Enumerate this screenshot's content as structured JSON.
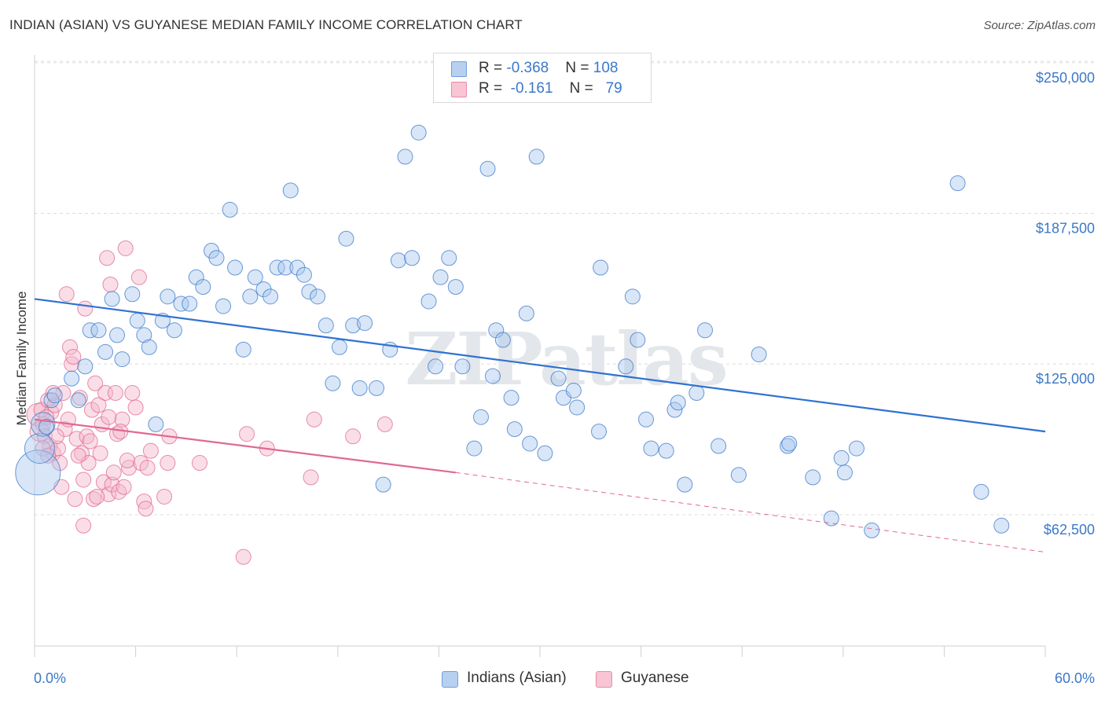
{
  "header": {
    "title": "INDIAN (ASIAN) VS GUYANESE MEDIAN FAMILY INCOME CORRELATION CHART",
    "source": "Source: ZipAtlas.com"
  },
  "watermark": "ZIPatlas",
  "colors": {
    "blue": "#3b78c9",
    "blue_fill": "#a9c7ee",
    "blue_line": "#2e72d2",
    "pink": "#e0688f",
    "pink_fill": "#f4b6c9",
    "pink_line": "#e06990",
    "grid": "#dddddd",
    "axis_text": "#3b78c9"
  },
  "legend": {
    "rows": [
      {
        "r_label": "R = ",
        "r_value": "-0.368",
        "n_label": "N = ",
        "n_value": "108"
      },
      {
        "r_label": "R = ",
        "r_value": "-0.161",
        "n_label": "N = ",
        "n_value": "79"
      }
    ]
  },
  "bottom_legend": {
    "items": [
      {
        "label": "Indians (Asian)"
      },
      {
        "label": "Guyanese"
      }
    ]
  },
  "chart_data": {
    "type": "scatter",
    "title": "INDIAN (ASIAN) VS GUYANESE MEDIAN FAMILY INCOME CORRELATION CHART",
    "xlabel": "",
    "ylabel": "Median Family Income",
    "xlim": [
      0,
      60
    ],
    "ylim": [
      12000,
      260000
    ],
    "x_tick_labels": [
      "0.0%",
      "60.0%"
    ],
    "y_ticks": [
      62500,
      125000,
      187500,
      250000
    ],
    "y_tick_labels": [
      "$62,500",
      "$125,000",
      "$187,500",
      "$250,000"
    ],
    "grid": true,
    "legend_position": "top-center",
    "series": [
      {
        "name": "Indians (Asian)",
        "color": "blue",
        "trend": {
          "x": [
            0,
            60
          ],
          "y": [
            152000,
            97000
          ]
        },
        "points": [
          [
            0.2,
            80000,
            3
          ],
          [
            0.3,
            90000,
            2
          ],
          [
            0.5,
            100000,
            1.6
          ],
          [
            0.7,
            99000,
            1
          ],
          [
            1.0,
            110000,
            1
          ],
          [
            1.2,
            112000,
            1
          ],
          [
            2.2,
            119000,
            1
          ],
          [
            2.6,
            110000,
            1
          ],
          [
            3.0,
            124000,
            1
          ],
          [
            3.3,
            139000,
            1
          ],
          [
            3.8,
            139000,
            1
          ],
          [
            4.2,
            130000,
            1
          ],
          [
            4.6,
            152000,
            1
          ],
          [
            4.9,
            137000,
            1
          ],
          [
            5.2,
            127000,
            1
          ],
          [
            5.8,
            154000,
            1
          ],
          [
            6.1,
            143000,
            1
          ],
          [
            6.5,
            137000,
            1
          ],
          [
            6.8,
            132000,
            1
          ],
          [
            7.2,
            100000,
            1
          ],
          [
            7.6,
            143000,
            1
          ],
          [
            7.9,
            153000,
            1
          ],
          [
            8.3,
            139000,
            1
          ],
          [
            8.7,
            150000,
            1
          ],
          [
            9.2,
            150000,
            1
          ],
          [
            9.6,
            161000,
            1
          ],
          [
            10.0,
            157000,
            1
          ],
          [
            10.5,
            172000,
            1
          ],
          [
            10.8,
            169000,
            1
          ],
          [
            11.2,
            149000,
            1
          ],
          [
            11.6,
            189000,
            1
          ],
          [
            11.9,
            165000,
            1
          ],
          [
            12.4,
            131000,
            1
          ],
          [
            12.8,
            153000,
            1
          ],
          [
            13.1,
            161000,
            1
          ],
          [
            13.6,
            156000,
            1
          ],
          [
            14.0,
            153000,
            1
          ],
          [
            14.4,
            165000,
            1
          ],
          [
            14.9,
            165000,
            1
          ],
          [
            15.2,
            197000,
            1
          ],
          [
            15.6,
            165000,
            1
          ],
          [
            16.0,
            162000,
            1
          ],
          [
            16.3,
            155000,
            1
          ],
          [
            16.8,
            153000,
            1
          ],
          [
            17.3,
            141000,
            1
          ],
          [
            17.7,
            117000,
            1
          ],
          [
            18.1,
            132000,
            1
          ],
          [
            18.5,
            177000,
            1
          ],
          [
            18.9,
            141000,
            1
          ],
          [
            19.3,
            115000,
            1
          ],
          [
            19.6,
            142000,
            1
          ],
          [
            20.3,
            115000,
            1
          ],
          [
            20.7,
            75000,
            1
          ],
          [
            21.1,
            131000,
            1
          ],
          [
            21.6,
            168000,
            1
          ],
          [
            22.0,
            211000,
            1
          ],
          [
            22.4,
            169000,
            1
          ],
          [
            22.8,
            221000,
            1
          ],
          [
            23.4,
            151000,
            1
          ],
          [
            23.8,
            124000,
            1
          ],
          [
            24.1,
            161000,
            1
          ],
          [
            24.6,
            169000,
            1
          ],
          [
            25.0,
            157000,
            1
          ],
          [
            25.4,
            124000,
            1
          ],
          [
            26.1,
            90000,
            1
          ],
          [
            26.5,
            103000,
            1
          ],
          [
            26.9,
            206000,
            1
          ],
          [
            27.2,
            120000,
            1
          ],
          [
            27.4,
            139000,
            1
          ],
          [
            27.8,
            135000,
            1
          ],
          [
            28.3,
            111000,
            1
          ],
          [
            28.5,
            98000,
            1
          ],
          [
            29.2,
            146000,
            1
          ],
          [
            29.4,
            92000,
            1
          ],
          [
            29.8,
            211000,
            1
          ],
          [
            30.3,
            88000,
            1
          ],
          [
            31.1,
            119000,
            1
          ],
          [
            31.4,
            111000,
            1
          ],
          [
            32.0,
            114000,
            1
          ],
          [
            32.2,
            107000,
            1
          ],
          [
            33.5,
            97000,
            1
          ],
          [
            33.6,
            165000,
            1
          ],
          [
            35.1,
            124000,
            1
          ],
          [
            35.5,
            153000,
            1
          ],
          [
            35.8,
            135000,
            1
          ],
          [
            36.3,
            102000,
            1
          ],
          [
            36.6,
            90000,
            1
          ],
          [
            37.5,
            89000,
            1
          ],
          [
            38.0,
            106000,
            1
          ],
          [
            38.2,
            109000,
            1
          ],
          [
            38.6,
            75000,
            1
          ],
          [
            39.3,
            113000,
            1
          ],
          [
            39.8,
            139000,
            1
          ],
          [
            40.6,
            91000,
            1
          ],
          [
            41.8,
            79000,
            1
          ],
          [
            43.0,
            129000,
            1
          ],
          [
            44.7,
            91000,
            1
          ],
          [
            44.8,
            92000,
            1
          ],
          [
            46.2,
            78000,
            1
          ],
          [
            47.3,
            61000,
            1
          ],
          [
            47.9,
            86000,
            1
          ],
          [
            48.1,
            80000,
            1
          ],
          [
            48.8,
            90000,
            1
          ],
          [
            49.7,
            56000,
            1
          ],
          [
            54.8,
            200000,
            1
          ],
          [
            56.2,
            72000,
            1
          ],
          [
            57.4,
            58000,
            1
          ]
        ]
      },
      {
        "name": "Guyanese",
        "color": "pink",
        "trend": {
          "x": [
            0,
            25
          ],
          "y": [
            102000,
            80000
          ],
          "dashed_to": [
            60,
            47000
          ]
        },
        "points": [
          [
            0.2,
            104000,
            1.5
          ],
          [
            0.3,
            97000,
            1.3
          ],
          [
            0.4,
            106000,
            1
          ],
          [
            0.5,
            100000,
            1
          ],
          [
            0.6,
            95000,
            1
          ],
          [
            0.8,
            110000,
            1
          ],
          [
            0.9,
            91000,
            1
          ],
          [
            1.0,
            105000,
            1
          ],
          [
            1.1,
            88000,
            1
          ],
          [
            1.2,
            108000,
            1
          ],
          [
            1.4,
            90000,
            1
          ],
          [
            1.5,
            84000,
            1
          ],
          [
            1.6,
            74000,
            1
          ],
          [
            1.8,
            98000,
            1
          ],
          [
            1.9,
            154000,
            1
          ],
          [
            2.1,
            132000,
            1
          ],
          [
            2.2,
            125000,
            1
          ],
          [
            2.3,
            128000,
            1
          ],
          [
            2.4,
            69000,
            1
          ],
          [
            2.5,
            94000,
            1
          ],
          [
            2.7,
            111000,
            1
          ],
          [
            2.8,
            88000,
            1
          ],
          [
            2.9,
            58000,
            1
          ],
          [
            3.0,
            148000,
            1
          ],
          [
            3.1,
            95000,
            1
          ],
          [
            3.2,
            84000,
            1
          ],
          [
            3.4,
            106000,
            1
          ],
          [
            3.5,
            69000,
            1
          ],
          [
            3.6,
            117000,
            1
          ],
          [
            3.8,
            108000,
            1
          ],
          [
            3.9,
            88000,
            1
          ],
          [
            4.0,
            100000,
            1
          ],
          [
            4.1,
            76000,
            1
          ],
          [
            4.2,
            113000,
            1
          ],
          [
            4.3,
            169000,
            1
          ],
          [
            4.4,
            71000,
            1
          ],
          [
            4.5,
            158000,
            1
          ],
          [
            4.6,
            75000,
            1
          ],
          [
            4.8,
            113000,
            1
          ],
          [
            4.9,
            96000,
            1
          ],
          [
            5.0,
            72000,
            1
          ],
          [
            5.2,
            102000,
            1
          ],
          [
            5.3,
            74000,
            1
          ],
          [
            5.4,
            173000,
            1
          ],
          [
            5.6,
            82000,
            1
          ],
          [
            5.8,
            113000,
            1
          ],
          [
            6.0,
            107000,
            1
          ],
          [
            6.2,
            161000,
            1
          ],
          [
            6.3,
            84000,
            1
          ],
          [
            6.5,
            68000,
            1
          ],
          [
            6.6,
            65000,
            1
          ],
          [
            6.9,
            89000,
            1
          ],
          [
            7.7,
            70000,
            1
          ],
          [
            7.9,
            84000,
            1
          ],
          [
            8.0,
            95000,
            1
          ],
          [
            9.8,
            84000,
            1
          ],
          [
            12.4,
            45000,
            1
          ],
          [
            12.6,
            96000,
            1
          ],
          [
            13.8,
            90000,
            1
          ],
          [
            16.4,
            78000,
            1
          ],
          [
            16.6,
            102000,
            1
          ],
          [
            18.9,
            95000,
            1
          ],
          [
            20.8,
            100000,
            1
          ],
          [
            0.7,
            103000,
            1
          ],
          [
            1.3,
            95000,
            1
          ],
          [
            2.0,
            102000,
            1
          ],
          [
            3.3,
            93000,
            1
          ],
          [
            4.7,
            80000,
            1
          ],
          [
            5.5,
            85000,
            1
          ],
          [
            1.7,
            113000,
            1
          ],
          [
            0.5,
            90000,
            1
          ],
          [
            2.6,
            87000,
            1
          ],
          [
            3.7,
            70000,
            1
          ],
          [
            5.1,
            97000,
            1
          ],
          [
            6.7,
            82000,
            1
          ],
          [
            1.1,
            113000,
            1
          ],
          [
            2.9,
            77000,
            1
          ],
          [
            4.4,
            103000,
            1
          ],
          [
            0.8,
            87000,
            1
          ]
        ]
      }
    ]
  }
}
